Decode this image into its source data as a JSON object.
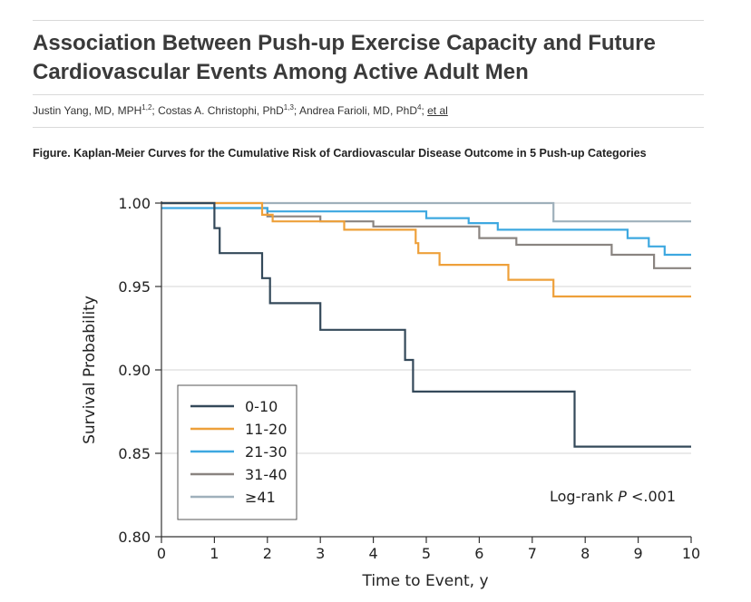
{
  "article": {
    "title": "Association Between Push-up Exercise Capacity and Future Cardiovascular Events Among Active Adult Men",
    "authors": [
      {
        "name": "Justin Yang, MD, MPH",
        "aff": "1,2",
        "sep": "; "
      },
      {
        "name": "Costas A. Christophi, PhD",
        "aff": "1,3",
        "sep": "; "
      },
      {
        "name": "Andrea Farioli, MD, PhD",
        "aff": "4",
        "sep": "; "
      }
    ],
    "et_al": "et al",
    "figure_caption": "Figure.  Kaplan-Meier Curves for the Cumulative Risk of Cardiovascular Disease Outcome in 5 Push-up Categories"
  },
  "chart_data": {
    "type": "line",
    "step": true,
    "xlabel": "Time to Event, y",
    "ylabel": "Survival Probability",
    "xlim": [
      0,
      10
    ],
    "ylim": [
      0.8,
      1.0
    ],
    "xticks": [
      "0",
      "1",
      "2",
      "3",
      "4",
      "5",
      "6",
      "7",
      "8",
      "9",
      "10"
    ],
    "yticks": [
      "0.80",
      "0.85",
      "0.90",
      "0.95",
      "1.00"
    ],
    "grid": "horizontal",
    "legend_position": "bottom-left",
    "annotation": {
      "prefix": "Log-rank ",
      "italic": "P",
      "suffix": " <.001"
    },
    "series": [
      {
        "name": "0-10",
        "color": "#34495a",
        "points": [
          [
            0,
            1.0
          ],
          [
            1.0,
            1.0
          ],
          [
            1.0,
            0.985
          ],
          [
            1.1,
            0.985
          ],
          [
            1.1,
            0.97
          ],
          [
            1.9,
            0.97
          ],
          [
            1.9,
            0.955
          ],
          [
            2.05,
            0.955
          ],
          [
            2.05,
            0.94
          ],
          [
            3.0,
            0.94
          ],
          [
            3.0,
            0.924
          ],
          [
            4.6,
            0.924
          ],
          [
            4.6,
            0.906
          ],
          [
            4.75,
            0.906
          ],
          [
            4.75,
            0.887
          ],
          [
            7.8,
            0.887
          ],
          [
            7.8,
            0.854
          ],
          [
            10,
            0.854
          ]
        ]
      },
      {
        "name": "11-20",
        "color": "#eea03a",
        "points": [
          [
            0,
            1.0
          ],
          [
            1.9,
            1.0
          ],
          [
            1.9,
            0.993
          ],
          [
            2.1,
            0.993
          ],
          [
            2.1,
            0.989
          ],
          [
            3.45,
            0.989
          ],
          [
            3.45,
            0.984
          ],
          [
            4.8,
            0.984
          ],
          [
            4.8,
            0.976
          ],
          [
            4.85,
            0.976
          ],
          [
            4.85,
            0.97
          ],
          [
            5.25,
            0.97
          ],
          [
            5.25,
            0.963
          ],
          [
            6.55,
            0.963
          ],
          [
            6.55,
            0.954
          ],
          [
            7.4,
            0.954
          ],
          [
            7.4,
            0.944
          ],
          [
            10,
            0.944
          ]
        ]
      },
      {
        "name": "21-30",
        "color": "#3da8e0",
        "points": [
          [
            0,
            0.997
          ],
          [
            2.0,
            0.997
          ],
          [
            2.0,
            0.995
          ],
          [
            5.0,
            0.995
          ],
          [
            5.0,
            0.991
          ],
          [
            5.8,
            0.991
          ],
          [
            5.8,
            0.988
          ],
          [
            6.35,
            0.988
          ],
          [
            6.35,
            0.984
          ],
          [
            8.8,
            0.984
          ],
          [
            8.8,
            0.979
          ],
          [
            9.2,
            0.979
          ],
          [
            9.2,
            0.974
          ],
          [
            9.5,
            0.974
          ],
          [
            9.5,
            0.969
          ],
          [
            10,
            0.969
          ]
        ]
      },
      {
        "name": "31-40",
        "color": "#8a8480",
        "points": [
          [
            0,
            1.0
          ],
          [
            1.0,
            1.0
          ],
          [
            1.0,
            0.997
          ],
          [
            2.0,
            0.997
          ],
          [
            2.0,
            0.992
          ],
          [
            3.0,
            0.992
          ],
          [
            3.0,
            0.989
          ],
          [
            4.0,
            0.989
          ],
          [
            4.0,
            0.986
          ],
          [
            5.0,
            0.986
          ],
          [
            6.0,
            0.986
          ],
          [
            6.0,
            0.979
          ],
          [
            6.7,
            0.979
          ],
          [
            6.7,
            0.975
          ],
          [
            8.5,
            0.975
          ],
          [
            8.5,
            0.969
          ],
          [
            9.3,
            0.969
          ],
          [
            9.3,
            0.961
          ],
          [
            10,
            0.961
          ]
        ]
      },
      {
        "name": "≥41",
        "color": "#9fb0bb",
        "points": [
          [
            0,
            1.0
          ],
          [
            7.4,
            1.0
          ],
          [
            7.4,
            0.989
          ],
          [
            10,
            0.989
          ]
        ]
      }
    ]
  }
}
